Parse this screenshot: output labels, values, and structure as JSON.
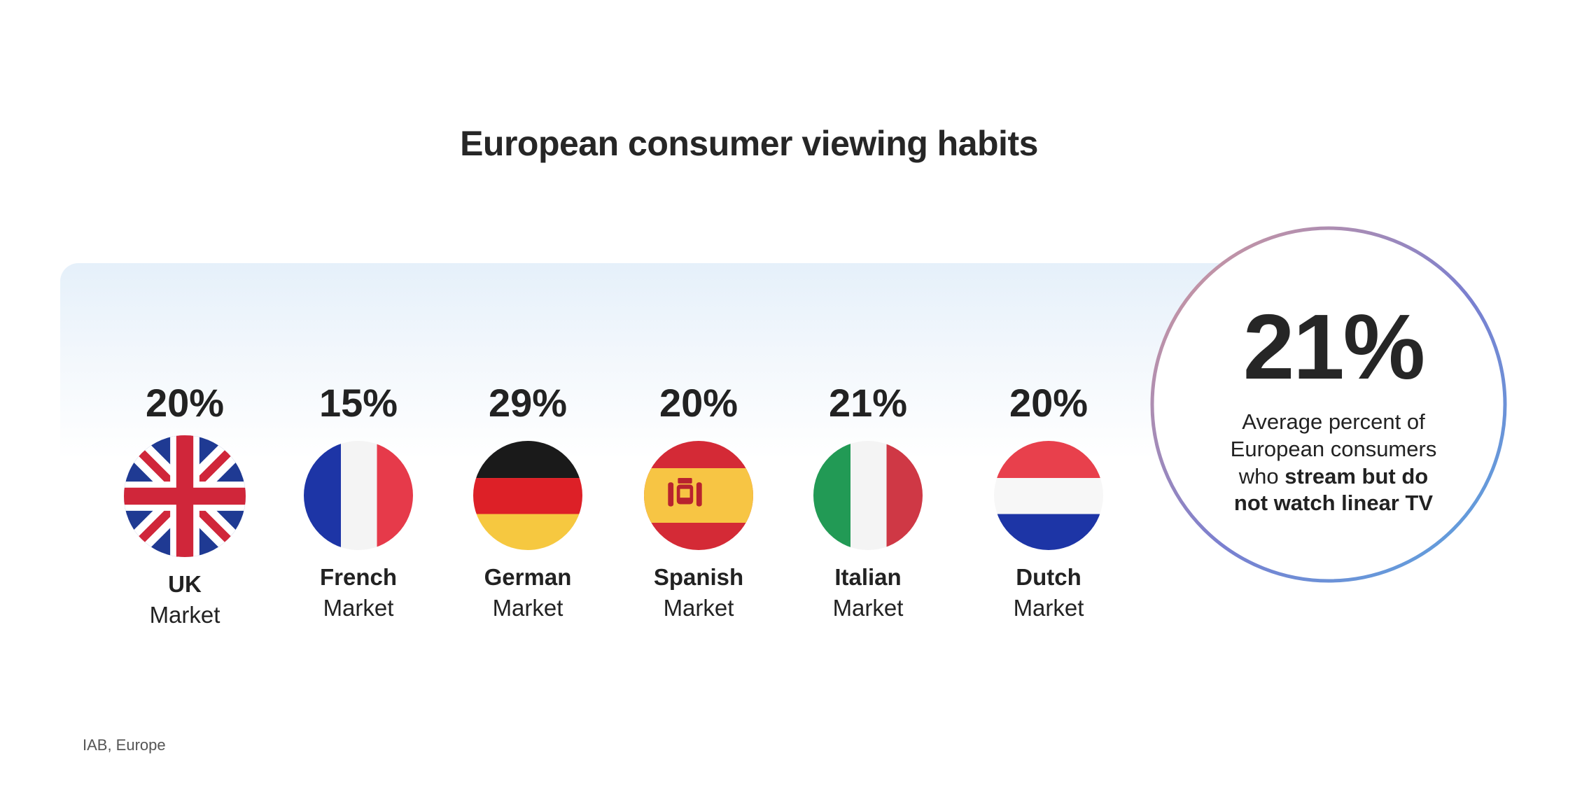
{
  "title": "European consumer viewing habits",
  "chart_data": {
    "type": "bar",
    "title": "European consumer viewing habits",
    "unit": "%",
    "categories": [
      "UK",
      "French",
      "German",
      "Spanish",
      "Italian",
      "Dutch"
    ],
    "category_suffix": "Market",
    "values": [
      20,
      15,
      29,
      20,
      21,
      20
    ],
    "value_labels": [
      "20%",
      "15%",
      "29%",
      "20%",
      "21%",
      "20%"
    ],
    "flag_icons": [
      "uk-flag-icon",
      "france-flag-icon",
      "germany-flag-icon",
      "spain-flag-icon",
      "italy-flag-icon",
      "netherlands-flag-icon"
    ]
  },
  "summary": {
    "value": "21%",
    "desc_lines": [
      "Average percent of",
      "European consumers"
    ],
    "desc_pre": "who ",
    "desc_bold_1": "stream but do",
    "desc_bold_2": "not watch linear TV"
  },
  "source": "IAB, Europe",
  "colors": {
    "ring_start": "#d99a98",
    "ring_mid": "#7a7fd0",
    "ring_end": "#5aa8e0",
    "band_top": "#e5f0fa"
  }
}
